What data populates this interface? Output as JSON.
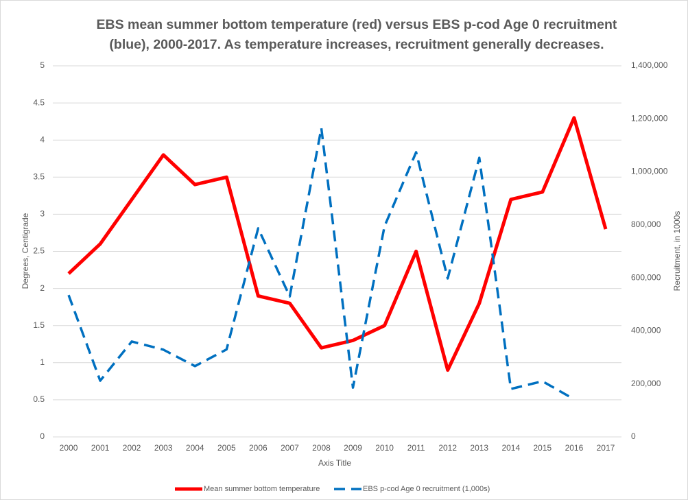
{
  "chart_data": {
    "type": "line",
    "title": "EBS mean summer bottom temperature (red) versus EBS p-cod Age 0 recruitment (blue), 2000-2017. As temperature increases, recruitment generally decreases.",
    "x_label": "Axis Title",
    "y_label": "Degrees, Centigrade",
    "y2_label": "Recruitment, in 1000s",
    "categories": [
      "2000",
      "2001",
      "2002",
      "2003",
      "2004",
      "2005",
      "2006",
      "2007",
      "2008",
      "2009",
      "2010",
      "2011",
      "2012",
      "2013",
      "2014",
      "2015",
      "2016",
      "2017"
    ],
    "series": [
      {
        "name": "Mean summer bottom temperature",
        "color": "#ff0000",
        "style": "solid",
        "values": [
          2.2,
          2.6,
          3.2,
          3.8,
          3.4,
          3.5,
          1.9,
          1.8,
          1.2,
          1.3,
          1.5,
          2.5,
          0.9,
          1.8,
          3.2,
          3.3,
          4.3,
          2.8
        ]
      },
      {
        "name": "EBS p-cod Age 0 recruitment (1,000s)",
        "color": "#0070c0",
        "style": "dashed",
        "axis": "y2",
        "values": [
          535000,
          212000,
          360000,
          329000,
          267000,
          330000,
          787000,
          530000,
          1165000,
          186000,
          795000,
          1074000,
          598000,
          1053000,
          181000,
          210000,
          142000,
          null
        ]
      }
    ],
    "ylim": [
      0,
      5
    ],
    "yticks": [
      0,
      0.5,
      1,
      1.5,
      2,
      2.5,
      3,
      3.5,
      4,
      4.5,
      5
    ],
    "y2lim": [
      0,
      1400000
    ],
    "y2ticks": [
      0,
      {
        "value": 200000,
        "label": "200,000"
      },
      {
        "value": 400000,
        "label": "400,000"
      },
      {
        "value": 600000,
        "label": "600,000"
      },
      {
        "value": 800000,
        "label": "800,000"
      },
      {
        "value": 1000000,
        "label": "1,000,000"
      },
      {
        "value": 1200000,
        "label": "1,200,000"
      },
      {
        "value": 1400000,
        "label": "1,400,000"
      }
    ],
    "grid": true,
    "legend": "bottom"
  }
}
